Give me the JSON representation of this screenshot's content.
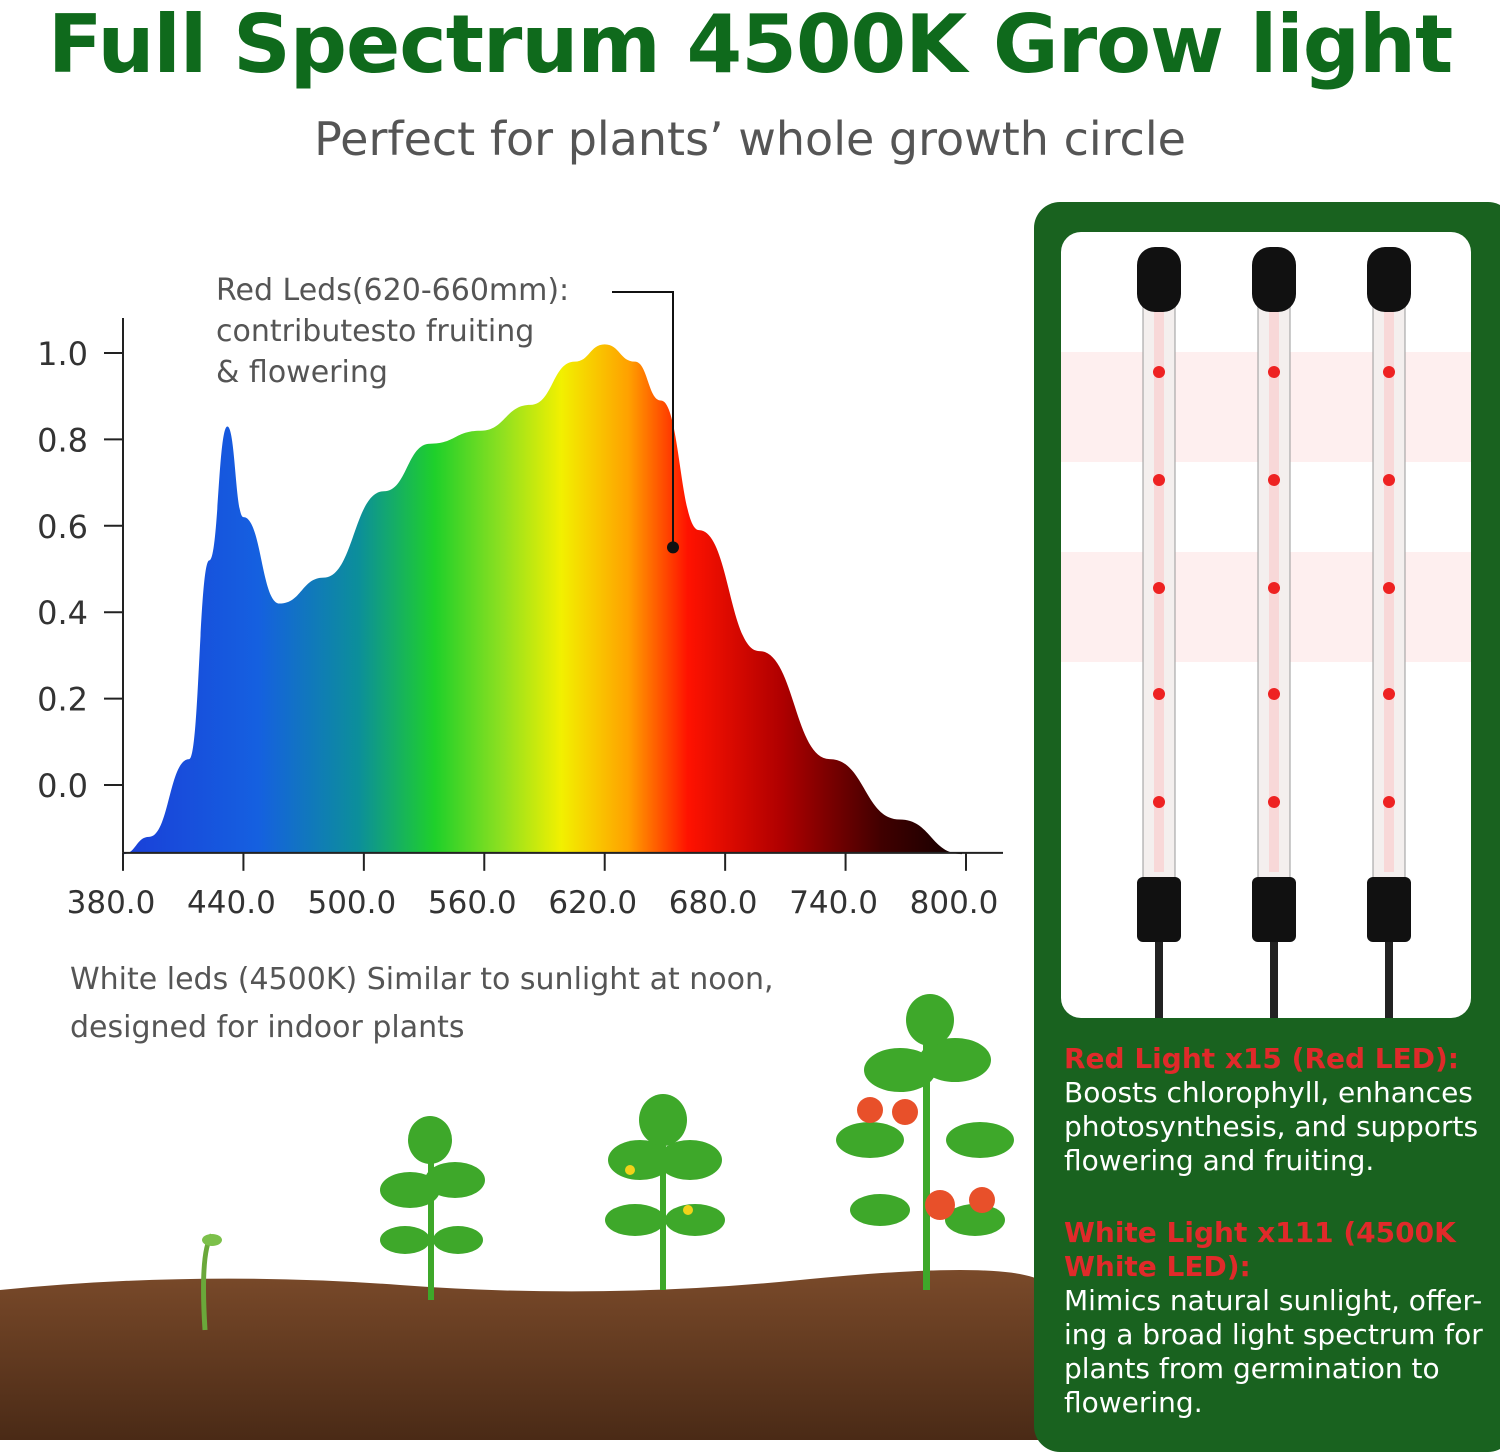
{
  "header": {
    "title": "Full Spectrum 4500K Grow light",
    "subtitle": "Perfect for plants’ whole growth circle"
  },
  "annotation": {
    "line1": "Red Leds(620-660mm):",
    "line2": "contributesto fruiting",
    "line3": "& flowering"
  },
  "white_note": {
    "line1": "White leds (4500K) Similar to sunlight at noon,",
    "line2": "designed for indoor plants"
  },
  "panel": {
    "red": {
      "heading": "Red Light x15 (Red LED):",
      "body": "Boosts chlorophyll, enhances photosynthesis, and supports flowering and fruiting."
    },
    "white": {
      "heading": "White Light x111 (4500K White LED):",
      "body": "Mimics natural sunlight, offer-ing a broad light spectrum for plants from germination to flowering."
    }
  },
  "colors": {
    "brand_green": "#0f6a1c",
    "panel_green": "#19621f",
    "heading_red": "#e02a2a"
  },
  "chart_data": {
    "type": "area",
    "title": "",
    "xlabel": "",
    "ylabel": "",
    "xlim": [
      380,
      818
    ],
    "ylim": [
      -0.16,
      1.08
    ],
    "x_ticks": [
      "380.0",
      "440.0",
      "500.0",
      "560.0",
      "620.0",
      "680.0",
      "740.0",
      "800.0"
    ],
    "y_ticks": [
      "1.0",
      "0.8",
      "0.6",
      "0.4",
      "0.2",
      "0.0"
    ],
    "grid": false,
    "fill": "visible-spectrum gradient",
    "x": [
      380,
      393,
      413,
      423,
      432,
      440,
      458,
      480,
      510,
      533,
      558,
      583,
      605,
      620,
      635,
      648,
      667,
      697,
      732,
      767,
      798
    ],
    "y": [
      -0.16,
      -0.12,
      0.06,
      0.52,
      0.83,
      0.62,
      0.42,
      0.48,
      0.68,
      0.79,
      0.82,
      0.88,
      0.98,
      1.02,
      0.98,
      0.89,
      0.59,
      0.31,
      0.06,
      -0.08,
      -0.16
    ],
    "annotation_point": {
      "x": 648,
      "y": 0.55
    }
  }
}
